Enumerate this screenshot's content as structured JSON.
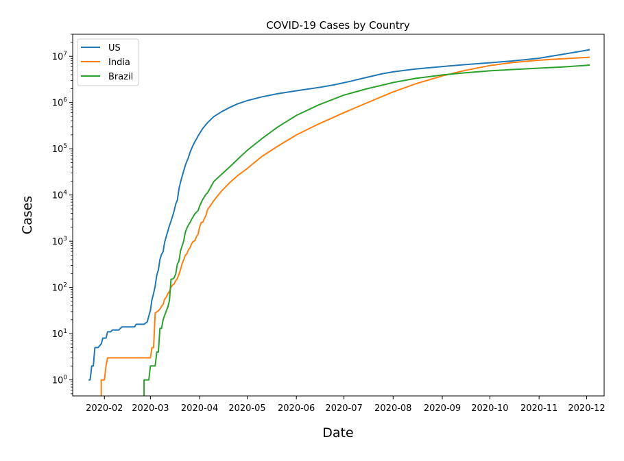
{
  "chart_data": {
    "type": "line",
    "title": "COVID-19 Cases by Country",
    "xlabel": "Date",
    "ylabel": "Cases",
    "yscale": "log",
    "ylim": [
      0.45,
      30000000
    ],
    "xlim": [
      "2020-01-12",
      "2020-12-12"
    ],
    "grid": false,
    "legend_position": "top-left",
    "x_ticks": [
      "2020-02",
      "2020-03",
      "2020-04",
      "2020-05",
      "2020-06",
      "2020-07",
      "2020-08",
      "2020-09",
      "2020-10",
      "2020-11",
      "2020-12"
    ],
    "y_ticks": [
      {
        "value": 1,
        "base": "10",
        "exp": "0"
      },
      {
        "value": 10,
        "base": "10",
        "exp": "1"
      },
      {
        "value": 100,
        "base": "10",
        "exp": "2"
      },
      {
        "value": 1000,
        "base": "10",
        "exp": "3"
      },
      {
        "value": 10000,
        "base": "10",
        "exp": "4"
      },
      {
        "value": 100000,
        "base": "10",
        "exp": "5"
      },
      {
        "value": 1000000,
        "base": "10",
        "exp": "6"
      },
      {
        "value": 10000000,
        "base": "10",
        "exp": "7"
      }
    ],
    "series": [
      {
        "name": "US",
        "color": "#1f77b4",
        "points": [
          [
            "2020-01-22",
            1
          ],
          [
            "2020-01-23",
            1
          ],
          [
            "2020-01-24",
            2
          ],
          [
            "2020-01-25",
            2
          ],
          [
            "2020-01-26",
            5
          ],
          [
            "2020-01-28",
            5
          ],
          [
            "2020-01-30",
            6
          ],
          [
            "2020-01-31",
            8
          ],
          [
            "2020-02-02",
            8
          ],
          [
            "2020-02-03",
            11
          ],
          [
            "2020-02-05",
            11
          ],
          [
            "2020-02-06",
            12
          ],
          [
            "2020-02-10",
            12
          ],
          [
            "2020-02-11",
            13
          ],
          [
            "2020-02-12",
            14
          ],
          [
            "2020-02-20",
            14
          ],
          [
            "2020-02-21",
            16
          ],
          [
            "2020-02-26",
            16
          ],
          [
            "2020-02-28",
            18
          ],
          [
            "2020-02-29",
            24
          ],
          [
            "2020-03-01",
            32
          ],
          [
            "2020-03-02",
            55
          ],
          [
            "2020-03-03",
            74
          ],
          [
            "2020-03-04",
            107
          ],
          [
            "2020-03-05",
            184
          ],
          [
            "2020-03-06",
            237
          ],
          [
            "2020-03-07",
            403
          ],
          [
            "2020-03-08",
            519
          ],
          [
            "2020-03-09",
            594
          ],
          [
            "2020-03-10",
            959
          ],
          [
            "2020-03-11",
            1281
          ],
          [
            "2020-03-12",
            1663
          ],
          [
            "2020-03-13",
            2179
          ],
          [
            "2020-03-14",
            2727
          ],
          [
            "2020-03-15",
            3499
          ],
          [
            "2020-03-16",
            4632
          ],
          [
            "2020-03-17",
            6421
          ],
          [
            "2020-03-18",
            7786
          ],
          [
            "2020-03-19",
            13680
          ],
          [
            "2020-03-20",
            19101
          ],
          [
            "2020-03-21",
            25493
          ],
          [
            "2020-03-22",
            33276
          ],
          [
            "2020-03-23",
            43847
          ],
          [
            "2020-03-24",
            53740
          ],
          [
            "2020-03-25",
            65778
          ],
          [
            "2020-03-26",
            83836
          ],
          [
            "2020-03-27",
            101657
          ],
          [
            "2020-03-28",
            121465
          ],
          [
            "2020-03-29",
            140909
          ],
          [
            "2020-03-30",
            161831
          ],
          [
            "2020-03-31",
            188172
          ],
          [
            "2020-04-03",
            275586
          ],
          [
            "2020-04-06",
            366667
          ],
          [
            "2020-04-10",
            496535
          ],
          [
            "2020-04-15",
            636350
          ],
          [
            "2020-04-20",
            784326
          ],
          [
            "2020-04-25",
            938154
          ],
          [
            "2020-05-01",
            1100000
          ],
          [
            "2020-05-10",
            1320000
          ],
          [
            "2020-05-20",
            1550000
          ],
          [
            "2020-06-01",
            1800000
          ],
          [
            "2020-06-15",
            2110000
          ],
          [
            "2020-06-25",
            2420000
          ],
          [
            "2020-07-05",
            2880000
          ],
          [
            "2020-07-15",
            3480000
          ],
          [
            "2020-07-25",
            4180000
          ],
          [
            "2020-08-01",
            4620000
          ],
          [
            "2020-08-15",
            5320000
          ],
          [
            "2020-09-01",
            6000000
          ],
          [
            "2020-09-15",
            6600000
          ],
          [
            "2020-10-01",
            7250000
          ],
          [
            "2020-10-15",
            7920000
          ],
          [
            "2020-11-01",
            9100000
          ],
          [
            "2020-11-15",
            10900000
          ],
          [
            "2020-12-01",
            13500000
          ],
          [
            "2020-12-03",
            14000000
          ]
        ]
      },
      {
        "name": "India",
        "color": "#ff7f0e",
        "points": [
          [
            "2020-01-30",
            0.45
          ],
          [
            "2020-01-30",
            1
          ],
          [
            "2020-02-01",
            1
          ],
          [
            "2020-02-02",
            2
          ],
          [
            "2020-02-03",
            3
          ],
          [
            "2020-03-01",
            3
          ],
          [
            "2020-03-02",
            5
          ],
          [
            "2020-03-03",
            5
          ],
          [
            "2020-03-04",
            28
          ],
          [
            "2020-03-06",
            31
          ],
          [
            "2020-03-07",
            34
          ],
          [
            "2020-03-08",
            39
          ],
          [
            "2020-03-09",
            43
          ],
          [
            "2020-03-10",
            56
          ],
          [
            "2020-03-11",
            62
          ],
          [
            "2020-03-12",
            73
          ],
          [
            "2020-03-13",
            82
          ],
          [
            "2020-03-14",
            102
          ],
          [
            "2020-03-15",
            113
          ],
          [
            "2020-03-16",
            119
          ],
          [
            "2020-03-17",
            142
          ],
          [
            "2020-03-18",
            156
          ],
          [
            "2020-03-19",
            194
          ],
          [
            "2020-03-20",
            244
          ],
          [
            "2020-03-21",
            330
          ],
          [
            "2020-03-22",
            396
          ],
          [
            "2020-03-23",
            499
          ],
          [
            "2020-03-24",
            536
          ],
          [
            "2020-03-25",
            657
          ],
          [
            "2020-03-26",
            727
          ],
          [
            "2020-03-27",
            887
          ],
          [
            "2020-03-28",
            987
          ],
          [
            "2020-03-29",
            1024
          ],
          [
            "2020-03-30",
            1251
          ],
          [
            "2020-03-31",
            1397
          ],
          [
            "2020-04-01",
            1998
          ],
          [
            "2020-04-02",
            2543
          ],
          [
            "2020-04-03",
            2567
          ],
          [
            "2020-04-04",
            3082
          ],
          [
            "2020-04-05",
            3588
          ],
          [
            "2020-04-06",
            4778
          ],
          [
            "2020-04-10",
            7600
          ],
          [
            "2020-04-15",
            12380
          ],
          [
            "2020-04-20",
            18539
          ],
          [
            "2020-04-25",
            26283
          ],
          [
            "2020-05-01",
            37336
          ],
          [
            "2020-05-10",
            67161
          ],
          [
            "2020-05-20",
            112359
          ],
          [
            "2020-06-01",
            198706
          ],
          [
            "2020-06-15",
            343091
          ],
          [
            "2020-07-01",
            604641
          ],
          [
            "2020-07-15",
            968876
          ],
          [
            "2020-08-01",
            1695988
          ],
          [
            "2020-08-15",
            2526192
          ],
          [
            "2020-09-01",
            3769523
          ],
          [
            "2020-09-15",
            4930236
          ],
          [
            "2020-10-01",
            6312584
          ],
          [
            "2020-10-15",
            7307097
          ],
          [
            "2020-11-01",
            8229313
          ],
          [
            "2020-11-15",
            8814579
          ],
          [
            "2020-12-01",
            9462809
          ],
          [
            "2020-12-03",
            9571559
          ]
        ]
      },
      {
        "name": "Brazil",
        "color": "#2ca02c",
        "points": [
          [
            "2020-02-26",
            0.45
          ],
          [
            "2020-02-26",
            1
          ],
          [
            "2020-02-29",
            1
          ],
          [
            "2020-03-01",
            2
          ],
          [
            "2020-03-04",
            2
          ],
          [
            "2020-03-05",
            4
          ],
          [
            "2020-03-06",
            4
          ],
          [
            "2020-03-07",
            13
          ],
          [
            "2020-03-08",
            13
          ],
          [
            "2020-03-09",
            20
          ],
          [
            "2020-03-10",
            25
          ],
          [
            "2020-03-11",
            31
          ],
          [
            "2020-03-12",
            38
          ],
          [
            "2020-03-13",
            52
          ],
          [
            "2020-03-14",
            151
          ],
          [
            "2020-03-15",
            151
          ],
          [
            "2020-03-16",
            162
          ],
          [
            "2020-03-17",
            200
          ],
          [
            "2020-03-18",
            321
          ],
          [
            "2020-03-19",
            372
          ],
          [
            "2020-03-20",
            621
          ],
          [
            "2020-03-21",
            793
          ],
          [
            "2020-03-22",
            1021
          ],
          [
            "2020-03-23",
            1546
          ],
          [
            "2020-03-24",
            1924
          ],
          [
            "2020-03-25",
            2247
          ],
          [
            "2020-03-26",
            2554
          ],
          [
            "2020-03-27",
            2985
          ],
          [
            "2020-03-28",
            3417
          ],
          [
            "2020-03-29",
            3904
          ],
          [
            "2020-03-30",
            4256
          ],
          [
            "2020-03-31",
            4579
          ],
          [
            "2020-04-01",
            5717
          ],
          [
            "2020-04-02",
            6836
          ],
          [
            "2020-04-03",
            8044
          ],
          [
            "2020-04-04",
            9056
          ],
          [
            "2020-04-05",
            10360
          ],
          [
            "2020-04-06",
            11130
          ],
          [
            "2020-04-10",
            19638
          ],
          [
            "2020-04-15",
            28320
          ],
          [
            "2020-04-20",
            40581
          ],
          [
            "2020-04-25",
            59324
          ],
          [
            "2020-05-01",
            92202
          ],
          [
            "2020-05-10",
            162699
          ],
          [
            "2020-05-20",
            291579
          ],
          [
            "2020-06-01",
            526447
          ],
          [
            "2020-06-15",
            888271
          ],
          [
            "2020-07-01",
            1448753
          ],
          [
            "2020-07-15",
            1966748
          ],
          [
            "2020-08-01",
            2707877
          ],
          [
            "2020-08-15",
            3317096
          ],
          [
            "2020-09-01",
            3950931
          ],
          [
            "2020-09-15",
            4382263
          ],
          [
            "2020-10-01",
            4847092
          ],
          [
            "2020-10-15",
            5169386
          ],
          [
            "2020-11-01",
            5545705
          ],
          [
            "2020-11-15",
            5863093
          ],
          [
            "2020-12-01",
            6386787
          ],
          [
            "2020-12-03",
            6487084
          ]
        ]
      }
    ]
  }
}
